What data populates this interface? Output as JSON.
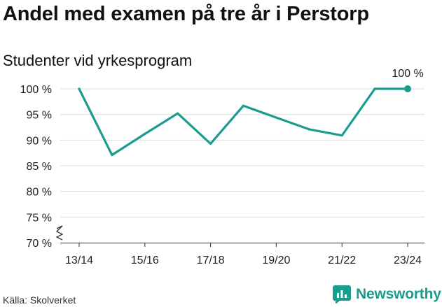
{
  "title": "Andel med examen på tre år i Perstorp",
  "subtitle": "Studenter vid yrkesprogram",
  "source": "Källa: Skolverket",
  "brand": {
    "name": "Newsworthy",
    "icon": "newsworthy-logo-icon",
    "color": "#1a9c8f"
  },
  "chart_data": {
    "type": "line",
    "title": "Andel med examen på tre år i Perstorp",
    "subtitle": "Studenter vid yrkesprogram",
    "x": [
      "13/14",
      "14/15",
      "15/16",
      "16/17",
      "17/18",
      "18/19",
      "19/20",
      "20/21",
      "21/22",
      "22/23",
      "23/24"
    ],
    "x_tick_labels": [
      "13/14",
      "15/16",
      "17/18",
      "19/20",
      "21/22",
      "23/24"
    ],
    "series": [
      {
        "values": [
          100,
          87.1,
          91.2,
          95.2,
          89.3,
          96.7,
          94.4,
          92.1,
          90.9,
          100,
          100
        ],
        "color": "#1a9c8f"
      }
    ],
    "y_ticks": [
      70,
      75,
      80,
      85,
      90,
      95,
      100
    ],
    "y_tick_labels": [
      "70 %",
      "75 %",
      "80 %",
      "85 %",
      "90 %",
      "95 %",
      "100 %"
    ],
    "ylim": [
      70,
      100
    ],
    "y_axis_break": true,
    "grid": true,
    "last_point_marker": true,
    "annotations": [
      {
        "x": "23/24",
        "text": "100 %"
      }
    ]
  }
}
